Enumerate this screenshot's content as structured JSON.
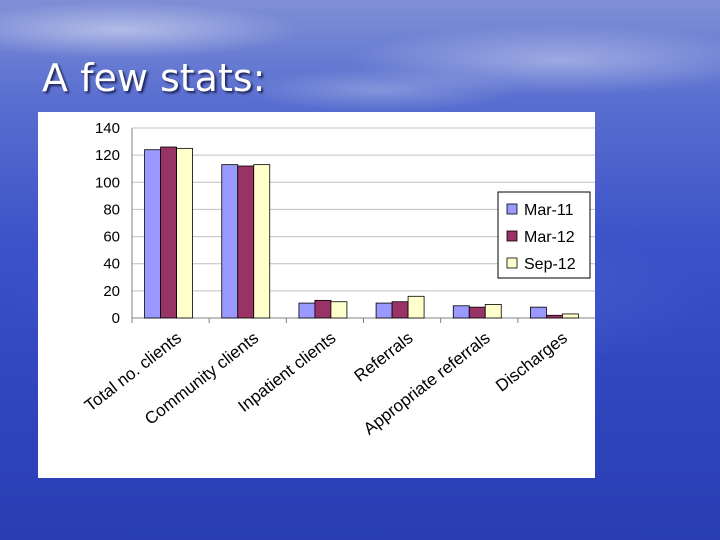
{
  "slide": {
    "title": "A few stats:"
  },
  "colors": {
    "series": [
      "#9999ff",
      "#993366",
      "#ffffcc"
    ],
    "grid": "#c0c0c0",
    "axis": "#808080"
  },
  "chart_data": {
    "type": "bar",
    "categories": [
      "Total no. clients",
      "Community clients",
      "Inpatient clients",
      "Referrals",
      "Appropriate referrals",
      "Discharges"
    ],
    "series": [
      {
        "name": "Mar-11",
        "values": [
          124,
          113,
          11,
          11,
          9,
          8
        ]
      },
      {
        "name": "Mar-12",
        "values": [
          126,
          112,
          13,
          12,
          8,
          2
        ]
      },
      {
        "name": "Sep-12",
        "values": [
          125,
          113,
          12,
          16,
          10,
          3
        ]
      }
    ],
    "ylim": [
      0,
      140
    ],
    "yticks": [
      0,
      20,
      40,
      60,
      80,
      100,
      120,
      140
    ],
    "grid": true,
    "legend": "right"
  }
}
